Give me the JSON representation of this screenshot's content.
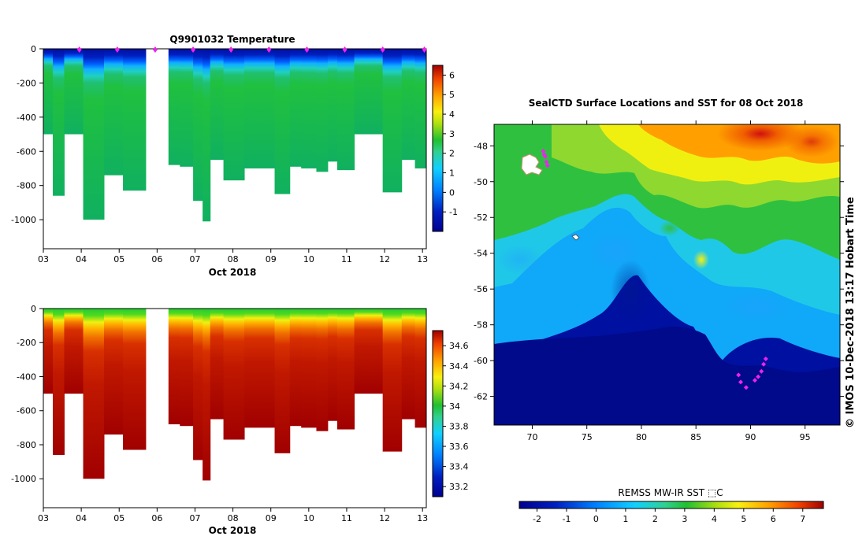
{
  "chart_data": [
    {
      "type": "heatmap",
      "title": "Q9901032  Temperature",
      "xlabel": "Oct 2018",
      "ylabel": "",
      "x_ticks": [
        "03",
        "04",
        "05",
        "06",
        "07",
        "08",
        "09",
        "10",
        "11",
        "12",
        "13"
      ],
      "y_ticks": [
        "0",
        "-200",
        "-400",
        "-600",
        "-800",
        "-1000"
      ],
      "xlim": [
        3.0,
        13.1
      ],
      "ylim": [
        -1170,
        0
      ],
      "colorbar": {
        "ticks": [
          "6",
          "5",
          "4",
          "3",
          "2",
          "1",
          "0",
          "-1"
        ],
        "range": [
          -2,
          6.5
        ]
      },
      "markers": "magenta diamonds along depth 0",
      "profiles": [
        {
          "x0": 3.0,
          "x1": 3.25,
          "max_depth": 500,
          "surface_temp": -1.8,
          "deep_temp": 1.4
        },
        {
          "x0": 3.25,
          "x1": 3.55,
          "max_depth": 860,
          "surface_temp": -1.8,
          "deep_temp": 1.4
        },
        {
          "x0": 3.55,
          "x1": 4.05,
          "max_depth": 500,
          "surface_temp": -1.8,
          "deep_temp": 1.4
        },
        {
          "x0": 4.05,
          "x1": 4.6,
          "max_depth": 1000,
          "surface_temp": -1.8,
          "deep_temp": 1.4
        },
        {
          "x0": 4.6,
          "x1": 5.1,
          "max_depth": 740,
          "surface_temp": -1.8,
          "deep_temp": 1.4
        },
        {
          "x0": 5.1,
          "x1": 5.7,
          "max_depth": 830,
          "surface_temp": -1.8,
          "deep_temp": 1.4
        },
        {
          "x0": 6.3,
          "x1": 6.6,
          "max_depth": 680,
          "surface_temp": -1.8,
          "deep_temp": 1.4
        },
        {
          "x0": 6.6,
          "x1": 6.95,
          "max_depth": 690,
          "surface_temp": -1.8,
          "deep_temp": 1.4
        },
        {
          "x0": 6.95,
          "x1": 7.2,
          "max_depth": 890,
          "surface_temp": -1.8,
          "deep_temp": 1.4
        },
        {
          "x0": 7.2,
          "x1": 7.4,
          "max_depth": 1010,
          "surface_temp": -1.8,
          "deep_temp": 1.4
        },
        {
          "x0": 7.4,
          "x1": 7.75,
          "max_depth": 650,
          "surface_temp": -1.8,
          "deep_temp": 1.4
        },
        {
          "x0": 7.75,
          "x1": 8.3,
          "max_depth": 770,
          "surface_temp": -1.8,
          "deep_temp": 1.4
        },
        {
          "x0": 8.3,
          "x1": 9.1,
          "max_depth": 700,
          "surface_temp": -1.8,
          "deep_temp": 1.4
        },
        {
          "x0": 9.1,
          "x1": 9.5,
          "max_depth": 850,
          "surface_temp": -1.8,
          "deep_temp": 1.4
        },
        {
          "x0": 9.5,
          "x1": 9.8,
          "max_depth": 690,
          "surface_temp": -1.8,
          "deep_temp": 1.4
        },
        {
          "x0": 9.8,
          "x1": 10.2,
          "max_depth": 700,
          "surface_temp": -1.8,
          "deep_temp": 1.4
        },
        {
          "x0": 10.2,
          "x1": 10.5,
          "max_depth": 720,
          "surface_temp": -1.8,
          "deep_temp": 1.4
        },
        {
          "x0": 10.5,
          "x1": 10.75,
          "max_depth": 660,
          "surface_temp": -1.8,
          "deep_temp": 1.4
        },
        {
          "x0": 10.75,
          "x1": 11.2,
          "max_depth": 710,
          "surface_temp": -1.8,
          "deep_temp": 1.4
        },
        {
          "x0": 11.2,
          "x1": 11.95,
          "max_depth": 500,
          "surface_temp": -1.8,
          "deep_temp": 1.4
        },
        {
          "x0": 11.95,
          "x1": 12.45,
          "max_depth": 840,
          "surface_temp": -1.8,
          "deep_temp": 1.4
        },
        {
          "x0": 12.45,
          "x1": 12.8,
          "max_depth": 650,
          "surface_temp": -1.8,
          "deep_temp": 1.4
        },
        {
          "x0": 12.8,
          "x1": 13.1,
          "max_depth": 700,
          "surface_temp": -1.8,
          "deep_temp": 1.4
        }
      ]
    },
    {
      "type": "heatmap",
      "title": "",
      "xlabel": "Oct 2018",
      "ylabel": "",
      "x_ticks": [
        "03",
        "04",
        "05",
        "06",
        "07",
        "08",
        "09",
        "10",
        "11",
        "12",
        "13"
      ],
      "y_ticks": [
        "0",
        "-200",
        "-400",
        "-600",
        "-800",
        "-1000"
      ],
      "xlim": [
        3.0,
        13.1
      ],
      "ylim": [
        -1170,
        0
      ],
      "colorbar": {
        "ticks": [
          "34.6",
          "34.4",
          "34.2",
          "34",
          "33.8",
          "33.6",
          "33.4",
          "33.2"
        ],
        "range": [
          33.1,
          34.75
        ]
      },
      "profiles_same_as_temperature": true,
      "surface_salinity": 33.9,
      "deep_salinity": 34.7
    },
    {
      "type": "heatmap",
      "title": "SealCTD Surface Locations and SST for 08 Oct 2018",
      "xlabel": "",
      "ylabel": "",
      "x_ticks": [
        "70",
        "75",
        "80",
        "85",
        "90",
        "95"
      ],
      "y_ticks": [
        "-48",
        "-50",
        "-52",
        "-54",
        "-56",
        "-58",
        "-60",
        "-62"
      ],
      "xlim": [
        66.5,
        98.2
      ],
      "ylim": [
        -63.6,
        -46.8
      ],
      "colorbar": {
        "label": "REMSS MW-IR SST ⬚C",
        "ticks": [
          "-2",
          "-1",
          "0",
          "1",
          "2",
          "3",
          "4",
          "5",
          "6",
          "7"
        ],
        "range": [
          -2.6,
          7.7
        ]
      },
      "seal_locations": [
        [
          71.0,
          -48.3
        ],
        [
          71.2,
          -48.6
        ],
        [
          71.3,
          -48.9
        ],
        [
          71.1,
          -48.5
        ],
        [
          71.4,
          -49.1
        ],
        [
          91.4,
          -59.9
        ],
        [
          91.2,
          -60.2
        ],
        [
          91.0,
          -60.6
        ],
        [
          90.7,
          -60.9
        ],
        [
          90.4,
          -61.1
        ],
        [
          89.6,
          -61.5
        ],
        [
          89.1,
          -61.2
        ],
        [
          88.9,
          -60.8
        ]
      ],
      "side_text": "©  IMOS 10-Dec-2018 13:17 Hobart Time"
    }
  ],
  "colors": {
    "marker": "#ee22ee",
    "land_white": "#ffffff",
    "colormap": [
      "#00008f",
      "#0020c0",
      "#0060ff",
      "#10b0ff",
      "#20e0d0",
      "#30d060",
      "#20c030",
      "#90e020",
      "#f0f010",
      "#ffc000",
      "#ff8000",
      "#f04000",
      "#c00000",
      "#900000"
    ]
  }
}
